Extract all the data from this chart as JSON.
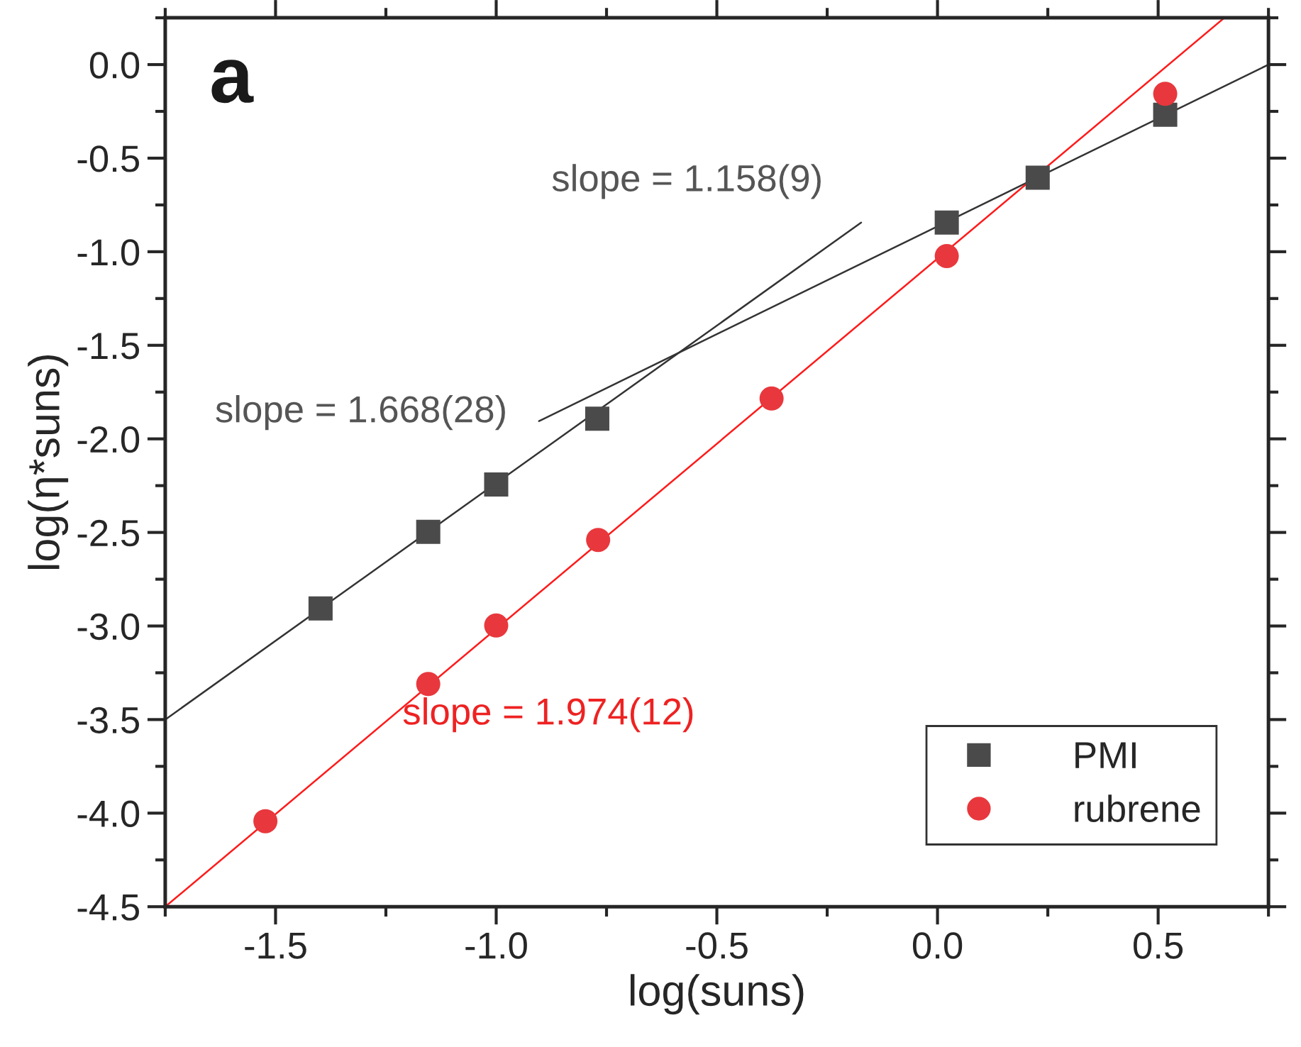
{
  "chart_data": {
    "type": "scatter",
    "xlabel": "log(suns)",
    "ylabel": "log(η*suns)",
    "xlim": [
      -1.75,
      0.75
    ],
    "ylim": [
      -4.5,
      0.25
    ],
    "xticks": [
      -1.5,
      {
        "value": -1,
        "label": "-1.0"
      },
      -0.5,
      {
        "value": 0,
        "label": "0.0"
      },
      0.5
    ],
    "yticks": [
      {
        "value": 0,
        "label": "0.0"
      },
      -0.5,
      {
        "value": -1,
        "label": "-1.0"
      },
      -1.5,
      {
        "value": -2,
        "label": "-2.0"
      },
      -2.5,
      {
        "value": -3,
        "label": "-3.0"
      },
      -3.5,
      {
        "value": -4,
        "label": "-4.0"
      },
      -4.5
    ],
    "legend": "bottom right",
    "grid": false,
    "series": [
      {
        "name": "PMI",
        "marker": "square",
        "color": "#4a4a4a",
        "x": [
          -1.398,
          -1.154,
          -1.0,
          -0.771,
          0.021,
          0.227,
          0.516
        ],
        "values": [
          -2.906,
          -2.497,
          -2.244,
          -1.892,
          -0.844,
          -0.604,
          -0.268
        ]
      },
      {
        "name": "rubrene",
        "marker": "circle",
        "color": "#e8383d",
        "x": [
          -1.523,
          -1.154,
          -1.0,
          -0.769,
          -0.376,
          0.021,
          0.516
        ],
        "values": [
          -4.043,
          -3.31,
          -2.997,
          -2.54,
          -1.784,
          -1.023,
          -0.156
        ]
      },
      {
        "type": "line",
        "marker": "none",
        "line_style": "solid",
        "color": "#333333",
        "x": [
          -1.75,
          -0.173
        ],
        "values": [
          -3.5,
          -0.844
        ]
      },
      {
        "type": "line",
        "marker": "none",
        "line_style": "solid",
        "color": "#333333",
        "x": [
          -0.903,
          0.75
        ],
        "values": [
          -1.905,
          0.0
        ]
      },
      {
        "type": "line",
        "marker": "none",
        "line_style": "solid",
        "color": "#ff1a1a",
        "x": [
          -1.75,
          0.65
        ],
        "values": [
          -4.5,
          0.25
        ]
      }
    ],
    "annotations": [
      "a",
      "slope = 1.158(9)",
      "slope = 1.668(28)",
      "slope = 1.974(12)"
    ]
  }
}
